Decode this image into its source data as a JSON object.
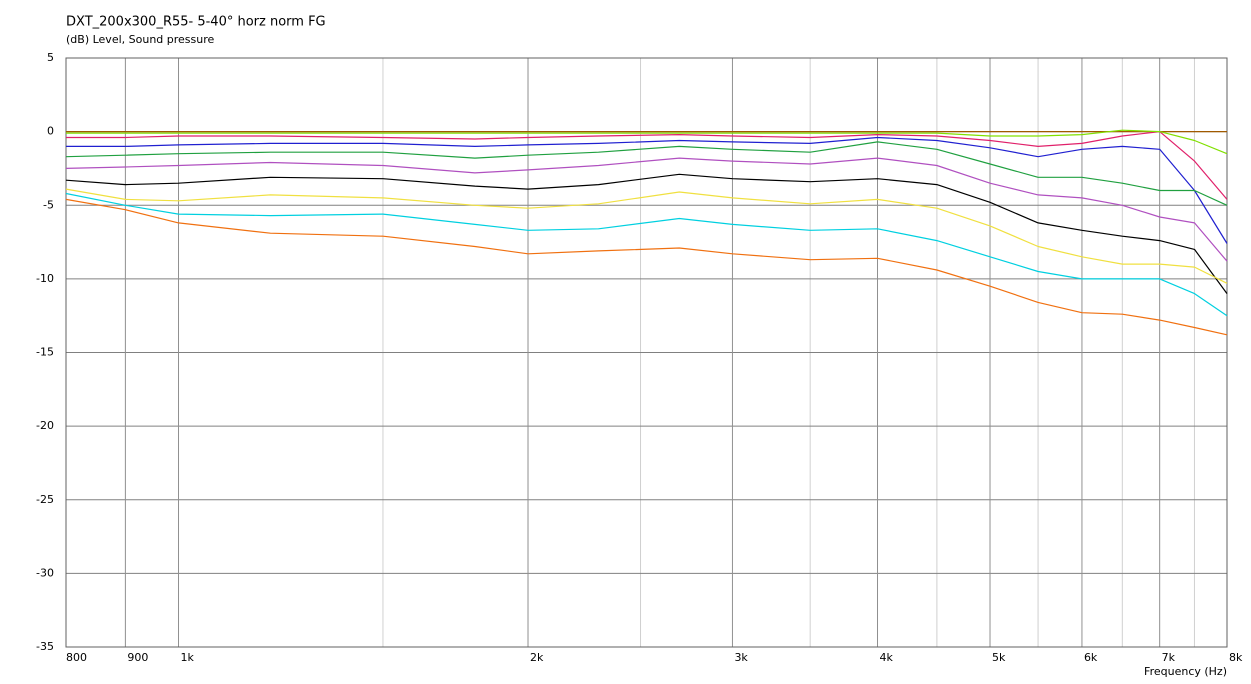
{
  "chart_data": {
    "type": "line",
    "title": "DXT_200x300_R55- 5-40° horz norm FG",
    "subtitle": "(dB)  Level, Sound pressure",
    "x_label": "Frequency (Hz)",
    "x_log": true,
    "grid": true,
    "x": [
      800,
      900,
      1000,
      1200,
      1500,
      1800,
      2000,
      2300,
      2700,
      3000,
      3500,
      4000,
      4500,
      5000,
      5500,
      6000,
      6500,
      7000,
      7500,
      8000
    ],
    "xlim": [
      800,
      8000
    ],
    "xticks": [
      800,
      900,
      {
        "value": 1000,
        "label": "1k"
      },
      {
        "value": 2000,
        "label": "2k"
      },
      {
        "value": 3000,
        "label": "3k"
      },
      {
        "value": 4000,
        "label": "4k"
      },
      {
        "value": 5000,
        "label": "5k"
      },
      {
        "value": 6000,
        "label": "6k"
      },
      {
        "value": 7000,
        "label": "7k"
      },
      {
        "value": 8000,
        "label": "8k"
      }
    ],
    "xminor_ticks": [
      1500,
      2500,
      3500,
      4500,
      5500,
      6500,
      7500
    ],
    "ylim": [
      -35,
      5
    ],
    "yticks": [
      5,
      0,
      -5,
      -10,
      -15,
      -20,
      -25,
      -30,
      -35
    ],
    "series": [
      {
        "color": "#a05a00",
        "values": [
          0,
          0,
          0,
          0,
          0,
          0,
          0,
          0,
          0,
          0,
          0,
          0,
          0,
          0,
          0,
          0,
          0,
          0,
          0,
          0
        ]
      },
      {
        "color": "#e0206a",
        "values": [
          -0.4,
          -0.4,
          -0.3,
          -0.3,
          -0.4,
          -0.5,
          -0.4,
          -0.3,
          -0.2,
          -0.3,
          -0.4,
          -0.2,
          -0.3,
          -0.6,
          -1.0,
          -0.8,
          -0.3,
          0,
          -2.0,
          -4.6
        ]
      },
      {
        "color": "#80e000",
        "values": [
          -0.1,
          -0.1,
          -0.1,
          -0.1,
          -0.1,
          -0.1,
          -0.1,
          -0.1,
          -0.1,
          -0.1,
          -0.1,
          -0.1,
          -0.1,
          -0.3,
          -0.3,
          -0.2,
          0.1,
          0,
          -0.6,
          -1.5
        ]
      },
      {
        "color": "#2020d0",
        "values": [
          -1.0,
          -1.0,
          -0.9,
          -0.8,
          -0.8,
          -1.0,
          -0.9,
          -0.8,
          -0.6,
          -0.7,
          -0.8,
          -0.4,
          -0.6,
          -1.1,
          -1.7,
          -1.2,
          -1.0,
          -1.2,
          -4.0,
          -7.6
        ]
      },
      {
        "color": "#20a040",
        "values": [
          -1.7,
          -1.6,
          -1.5,
          -1.4,
          -1.4,
          -1.8,
          -1.6,
          -1.4,
          -1.0,
          -1.2,
          -1.4,
          -0.7,
          -1.2,
          -2.2,
          -3.1,
          -3.1,
          -3.5,
          -4.0,
          -4.0,
          -5.0
        ]
      },
      {
        "color": "#b050c0",
        "values": [
          -2.5,
          -2.4,
          -2.3,
          -2.1,
          -2.3,
          -2.8,
          -2.6,
          -2.3,
          -1.8,
          -2.0,
          -2.2,
          -1.8,
          -2.3,
          -3.5,
          -4.3,
          -4.5,
          -5.0,
          -5.8,
          -6.2,
          -8.8
        ]
      },
      {
        "color": "#000000",
        "values": [
          -3.3,
          -3.6,
          -3.5,
          -3.1,
          -3.2,
          -3.7,
          -3.9,
          -3.6,
          -2.9,
          -3.2,
          -3.4,
          -3.2,
          -3.6,
          -4.8,
          -6.2,
          -6.7,
          -7.1,
          -7.4,
          -8.0,
          -11.0
        ]
      },
      {
        "color": "#f0e040",
        "values": [
          -3.9,
          -4.6,
          -4.7,
          -4.3,
          -4.5,
          -5.0,
          -5.2,
          -4.9,
          -4.1,
          -4.5,
          -4.9,
          -4.6,
          -5.2,
          -6.4,
          -7.8,
          -8.5,
          -9.0,
          -9.0,
          -9.2,
          -10.3
        ]
      },
      {
        "color": "#00d0e0",
        "values": [
          -4.2,
          -5.0,
          -5.6,
          -5.7,
          -5.6,
          -6.3,
          -6.7,
          -6.6,
          -5.9,
          -6.3,
          -6.7,
          -6.6,
          -7.4,
          -8.5,
          -9.5,
          -10.0,
          -10.0,
          -10.0,
          -11.0,
          -12.5
        ]
      },
      {
        "color": "#f07010",
        "values": [
          -4.6,
          -5.3,
          -6.2,
          -6.9,
          -7.1,
          -7.8,
          -8.3,
          -8.1,
          -7.9,
          -8.3,
          -8.7,
          -8.6,
          -9.4,
          -10.5,
          -11.6,
          -12.3,
          -12.4,
          -12.8,
          -13.3,
          -13.8
        ]
      }
    ]
  }
}
